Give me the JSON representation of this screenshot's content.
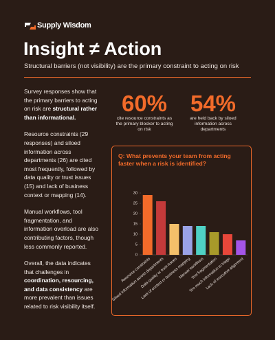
{
  "header": {
    "brand": "Supply Wisdom",
    "title": "Insight ≠ Action",
    "subtitle": "Structural barriers (not visibility) are the primary constraint to acting on risk"
  },
  "body": {
    "paragraphs": [
      [
        {
          "text": "Survey responses show that the primary barriers to acting on risk are "
        },
        {
          "text": "structural rather than informational.",
          "bold": true
        }
      ],
      [
        {
          "text": "Resource constraints (29 responses) and siloed information across departments (26) are cited most frequently, followed by data quality or trust issues (15) and lack of business context or mapping (14)."
        }
      ],
      [
        {
          "text": "Manual workflows, tool fragmentation, and information overload are also contributing factors, though less commonly reported."
        }
      ],
      [
        {
          "text": "Overall, the data indicates that challenges in "
        },
        {
          "text": "coordination, resourcing, and data consistency",
          "bold": true
        },
        {
          "text": " are more prevalent than issues related to risk visibility itself."
        }
      ]
    ]
  },
  "stats": [
    {
      "value": "60%",
      "caption": "cite resource constraints as the primary blocker to acting on risk"
    },
    {
      "value": "54%",
      "caption": "are held back by siloed information across departments"
    }
  ],
  "chart_data": {
    "type": "bar",
    "title": "Q: What prevents your team from acting faster when a risk is identified?",
    "categories": [
      "Resource constraints",
      "Siloed information across departments",
      "Data quality or trust issues",
      "Lack of context or business mapping",
      "Manual workflows",
      "Tool fragmentation",
      "Too much information to triage",
      "Lack of executive alignment"
    ],
    "values": [
      29,
      26,
      15,
      14,
      14,
      11,
      10,
      7
    ],
    "colors": [
      "#f26b2a",
      "#c43a3a",
      "#f4c06a",
      "#9aa2e6",
      "#4fd1c5",
      "#a89a2a",
      "#e8473a",
      "#a455e8"
    ],
    "ylim": [
      0,
      32
    ],
    "yticks": [
      0,
      5,
      10,
      15,
      20,
      25,
      30
    ]
  }
}
